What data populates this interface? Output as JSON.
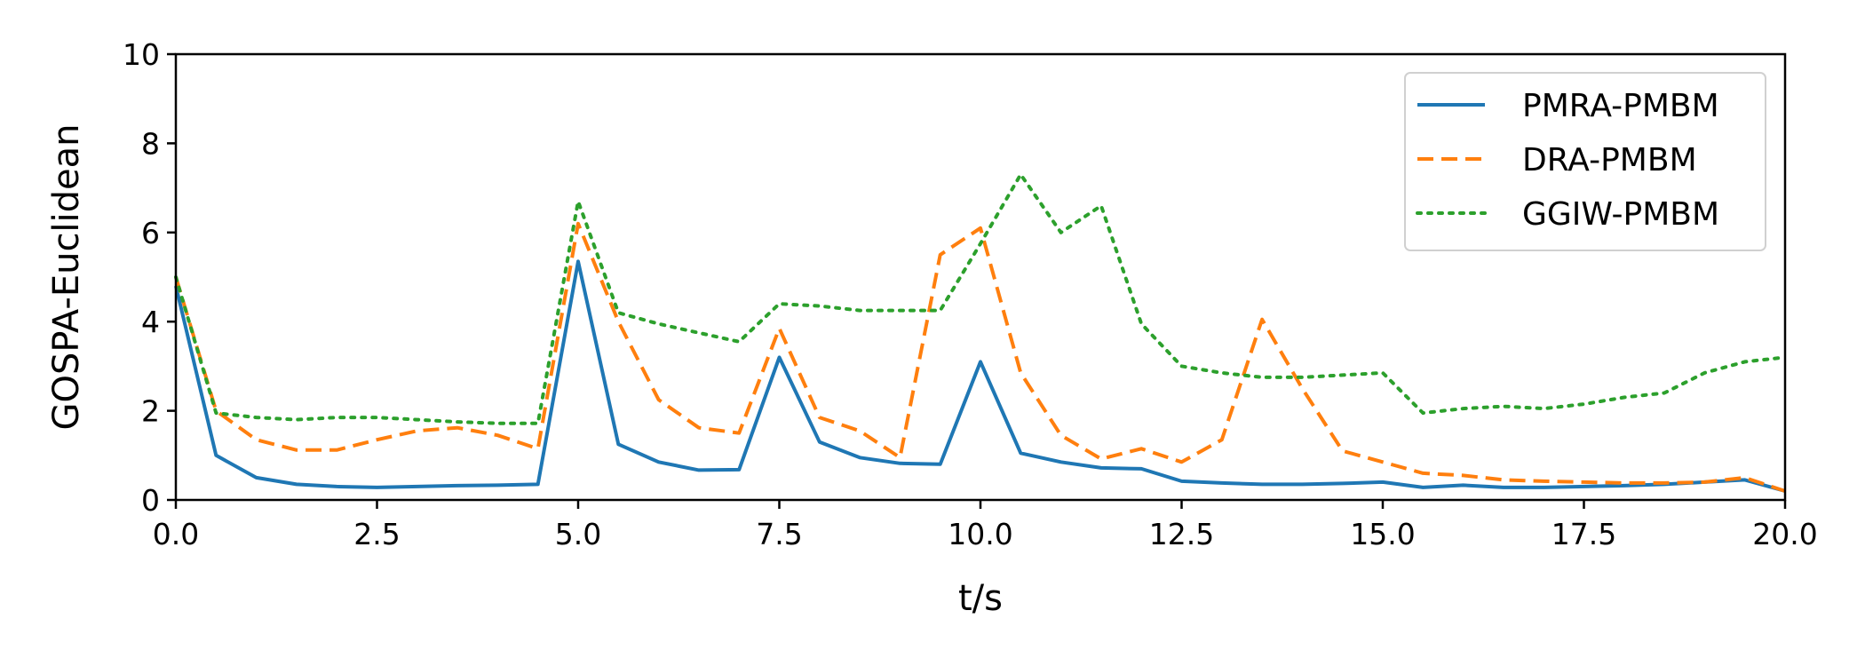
{
  "chart_data": {
    "type": "line",
    "xlabel": "t/s",
    "ylabel": "GOSPA-Euclidean",
    "xlim": [
      0,
      20
    ],
    "ylim": [
      0,
      10
    ],
    "xticks": [
      "0.0",
      "2.5",
      "5.0",
      "7.5",
      "10.0",
      "12.5",
      "15.0",
      "17.5",
      "20.0"
    ],
    "yticks": [
      "0",
      "2",
      "4",
      "6",
      "8",
      "10"
    ],
    "grid": false,
    "legend_position": "top-right",
    "x": [
      0,
      0.5,
      1,
      1.5,
      2,
      2.5,
      3,
      3.5,
      4,
      4.5,
      5,
      5.5,
      6,
      6.5,
      7,
      7.5,
      8,
      8.5,
      9,
      9.5,
      10,
      10.5,
      11,
      11.5,
      12,
      12.5,
      13,
      13.5,
      14,
      14.5,
      15,
      15.5,
      16,
      16.5,
      17,
      17.5,
      18,
      18.5,
      19,
      19.5,
      20
    ],
    "series": [
      {
        "name": "PMRA-PMBM",
        "color": "#1f77b4",
        "style": "solid",
        "values": [
          4.8,
          1.0,
          0.5,
          0.35,
          0.3,
          0.28,
          0.3,
          0.32,
          0.33,
          0.35,
          5.35,
          1.25,
          0.85,
          0.67,
          0.68,
          3.2,
          1.3,
          0.95,
          0.82,
          0.8,
          3.1,
          1.05,
          0.85,
          0.72,
          0.7,
          0.42,
          0.38,
          0.35,
          0.35,
          0.37,
          0.4,
          0.28,
          0.33,
          0.28,
          0.28,
          0.3,
          0.32,
          0.35,
          0.4,
          0.45,
          0.2
        ]
      },
      {
        "name": "DRA-PMBM",
        "color": "#ff7f0e",
        "style": "dashed",
        "values": [
          5.0,
          2.0,
          1.35,
          1.12,
          1.12,
          1.35,
          1.55,
          1.62,
          1.45,
          1.15,
          6.2,
          4.0,
          2.25,
          1.62,
          1.5,
          3.85,
          1.85,
          1.55,
          0.95,
          5.5,
          6.1,
          2.85,
          1.45,
          0.92,
          1.15,
          0.85,
          1.35,
          4.05,
          2.5,
          1.1,
          0.85,
          0.6,
          0.55,
          0.45,
          0.42,
          0.4,
          0.38,
          0.38,
          0.4,
          0.5,
          0.2
        ]
      },
      {
        "name": "GGIW-PMBM",
        "color": "#2ca02c",
        "style": "dotted",
        "values": [
          5.0,
          1.95,
          1.85,
          1.8,
          1.85,
          1.85,
          1.8,
          1.75,
          1.72,
          1.72,
          6.7,
          4.2,
          3.95,
          3.75,
          3.55,
          4.4,
          4.35,
          4.25,
          4.25,
          4.25,
          5.75,
          7.3,
          6.0,
          6.6,
          3.95,
          3.0,
          2.85,
          2.75,
          2.75,
          2.8,
          2.85,
          1.95,
          2.05,
          2.1,
          2.05,
          2.15,
          2.3,
          2.4,
          2.85,
          3.1,
          3.2
        ]
      }
    ]
  }
}
